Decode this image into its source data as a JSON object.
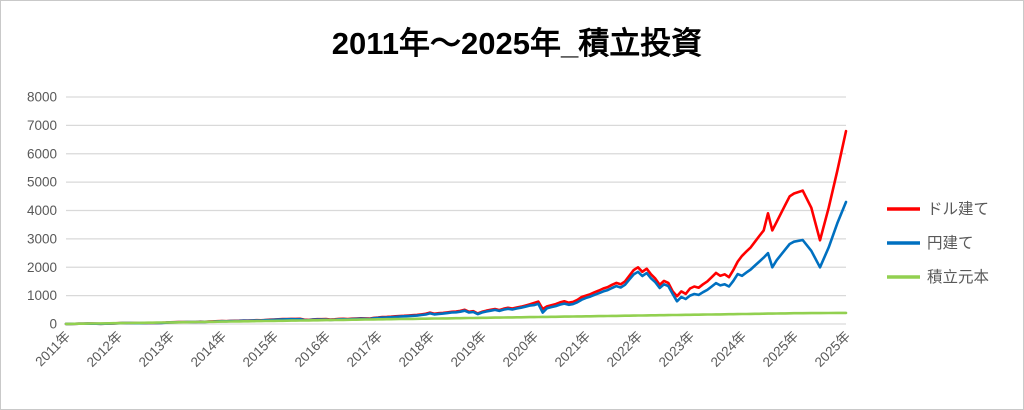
{
  "chart": {
    "title": "2011年～2025年_積立投資"
  },
  "chart_data": {
    "type": "line",
    "title": "2011年～2025年_積立投資",
    "x_unit": "month",
    "x_range": [
      "2011-01",
      "2025-07"
    ],
    "x_tick_labels": [
      "2011年",
      "2012年",
      "2013年",
      "2014年",
      "2015年",
      "2016年",
      "2017年",
      "2018年",
      "2019年",
      "2020年",
      "2021年",
      "2022年",
      "2023年",
      "2024年",
      "2025年",
      "2025年"
    ],
    "y_ticks": [
      0,
      1000,
      2000,
      3000,
      4000,
      5000,
      6000,
      7000,
      8000
    ],
    "ylim": [
      0,
      8000
    ],
    "grid": true,
    "legend_position": "right",
    "colors": {
      "gridline": "#d9d9d9",
      "axis_text": "#595959",
      "title_text": "#000000",
      "frame": "#c9c9c9"
    },
    "series": [
      {
        "name": "ドル建て",
        "color": "#ff0000",
        "values": [
          2,
          5,
          7,
          10,
          12,
          14,
          13,
          10,
          8,
          11,
          15,
          20,
          28,
          32,
          35,
          33,
          30,
          29,
          33,
          36,
          40,
          38,
          42,
          48,
          60,
          64,
          68,
          66,
          72,
          70,
          75,
          80,
          78,
          85,
          92,
          98,
          105,
          100,
          108,
          112,
          118,
          124,
          120,
          128,
          135,
          130,
          142,
          150,
          158,
          165,
          172,
          175,
          180,
          178,
          182,
          150,
          145,
          162,
          170,
          168,
          172,
          155,
          165,
          178,
          182,
          175,
          186,
          195,
          200,
          196,
          190,
          215,
          230,
          245,
          250,
          258,
          270,
          282,
          290,
          300,
          310,
          320,
          340,
          360,
          400,
          360,
          380,
          390,
          410,
          430,
          440,
          460,
          500,
          430,
          450,
          370,
          430,
          470,
          500,
          530,
          490,
          540,
          570,
          545,
          580,
          610,
          650,
          690,
          740,
          790,
          530,
          620,
          660,
          700,
          760,
          800,
          750,
          780,
          850,
          950,
          1000,
          1050,
          1120,
          1180,
          1250,
          1300,
          1380,
          1450,
          1400,
          1500,
          1700,
          1900,
          2000,
          1840,
          1950,
          1750,
          1600,
          1380,
          1520,
          1450,
          1150,
          980,
          1150,
          1060,
          1250,
          1320,
          1280,
          1400,
          1500,
          1650,
          1800,
          1700,
          1750,
          1650,
          1900,
          2200,
          2400,
          2550,
          2700,
          2900,
          3100,
          3300,
          3900,
          3300,
          3600,
          3900,
          4200,
          4500,
          4600,
          4700,
          4100,
          2950,
          4100,
          5400,
          6800
        ]
      },
      {
        "name": "円建て",
        "color": "#0070c0",
        "values": [
          2,
          5,
          7,
          9,
          11,
          13,
          12,
          9,
          7,
          10,
          14,
          18,
          26,
          30,
          33,
          31,
          28,
          27,
          31,
          34,
          38,
          36,
          40,
          45,
          56,
          60,
          64,
          62,
          68,
          66,
          71,
          75,
          73,
          80,
          86,
          92,
          98,
          94,
          101,
          105,
          111,
          116,
          112,
          120,
          127,
          122,
          133,
          141,
          148,
          154,
          161,
          164,
          168,
          166,
          170,
          140,
          135,
          151,
          159,
          157,
          160,
          144,
          153,
          165,
          169,
          162,
          172,
          181,
          186,
          182,
          176,
          200,
          214,
          228,
          232,
          240,
          251,
          262,
          270,
          279,
          288,
          297,
          316,
          335,
          375,
          338,
          356,
          366,
          385,
          404,
          413,
          432,
          470,
          404,
          423,
          348,
          404,
          442,
          470,
          498,
          460,
          507,
          535,
          512,
          545,
          573,
          611,
          649,
          666,
          711,
          400,
          558,
          594,
          630,
          684,
          720,
          675,
          702,
          765,
          855,
          920,
          966,
          1030,
          1086,
          1150,
          1196,
          1270,
          1334,
          1288,
          1380,
          1564,
          1748,
          1840,
          1693,
          1794,
          1610,
          1472,
          1270,
          1398,
          1334,
          1058,
          800,
          950,
          880,
          1000,
          1056,
          1024,
          1120,
          1200,
          1320,
          1440,
          1360,
          1400,
          1320,
          1520,
          1760,
          1700,
          1810,
          1920,
          2060,
          2200,
          2340,
          2500,
          2000,
          2250,
          2440,
          2630,
          2820,
          2900,
          2960,
          2580,
          2000,
          2700,
          3550,
          4300
        ]
      },
      {
        "name": "積立元本",
        "color": "#92d050",
        "values": [
          2,
          4,
          7,
          9,
          11,
          13,
          16,
          18,
          20,
          22,
          25,
          27,
          29,
          31,
          34,
          36,
          38,
          40,
          43,
          45,
          47,
          49,
          52,
          54,
          56,
          58,
          60,
          63,
          65,
          67,
          69,
          72,
          74,
          76,
          78,
          81,
          83,
          85,
          87,
          90,
          92,
          94,
          96,
          99,
          101,
          103,
          105,
          108,
          110,
          112,
          114,
          116,
          119,
          121,
          123,
          125,
          128,
          130,
          132,
          134,
          137,
          139,
          141,
          143,
          146,
          148,
          150,
          152,
          155,
          157,
          159,
          161,
          164,
          166,
          168,
          170,
          172,
          175,
          177,
          179,
          181,
          184,
          186,
          188,
          190,
          193,
          195,
          197,
          199,
          202,
          204,
          206,
          208,
          211,
          213,
          215,
          217,
          220,
          222,
          224,
          226,
          228,
          231,
          233,
          235,
          237,
          240,
          242,
          244,
          246,
          249,
          251,
          253,
          255,
          258,
          260,
          262,
          264,
          267,
          269,
          271,
          273,
          276,
          278,
          280,
          282,
          284,
          287,
          289,
          291,
          293,
          296,
          298,
          300,
          302,
          305,
          307,
          309,
          311,
          314,
          316,
          318,
          320,
          323,
          325,
          327,
          329,
          332,
          334,
          336,
          338,
          340,
          343,
          345,
          347,
          349,
          352,
          354,
          356,
          358,
          361,
          363,
          365,
          367,
          370,
          372,
          374,
          376,
          379,
          381,
          383,
          385,
          388,
          390,
          392
        ]
      }
    ]
  }
}
